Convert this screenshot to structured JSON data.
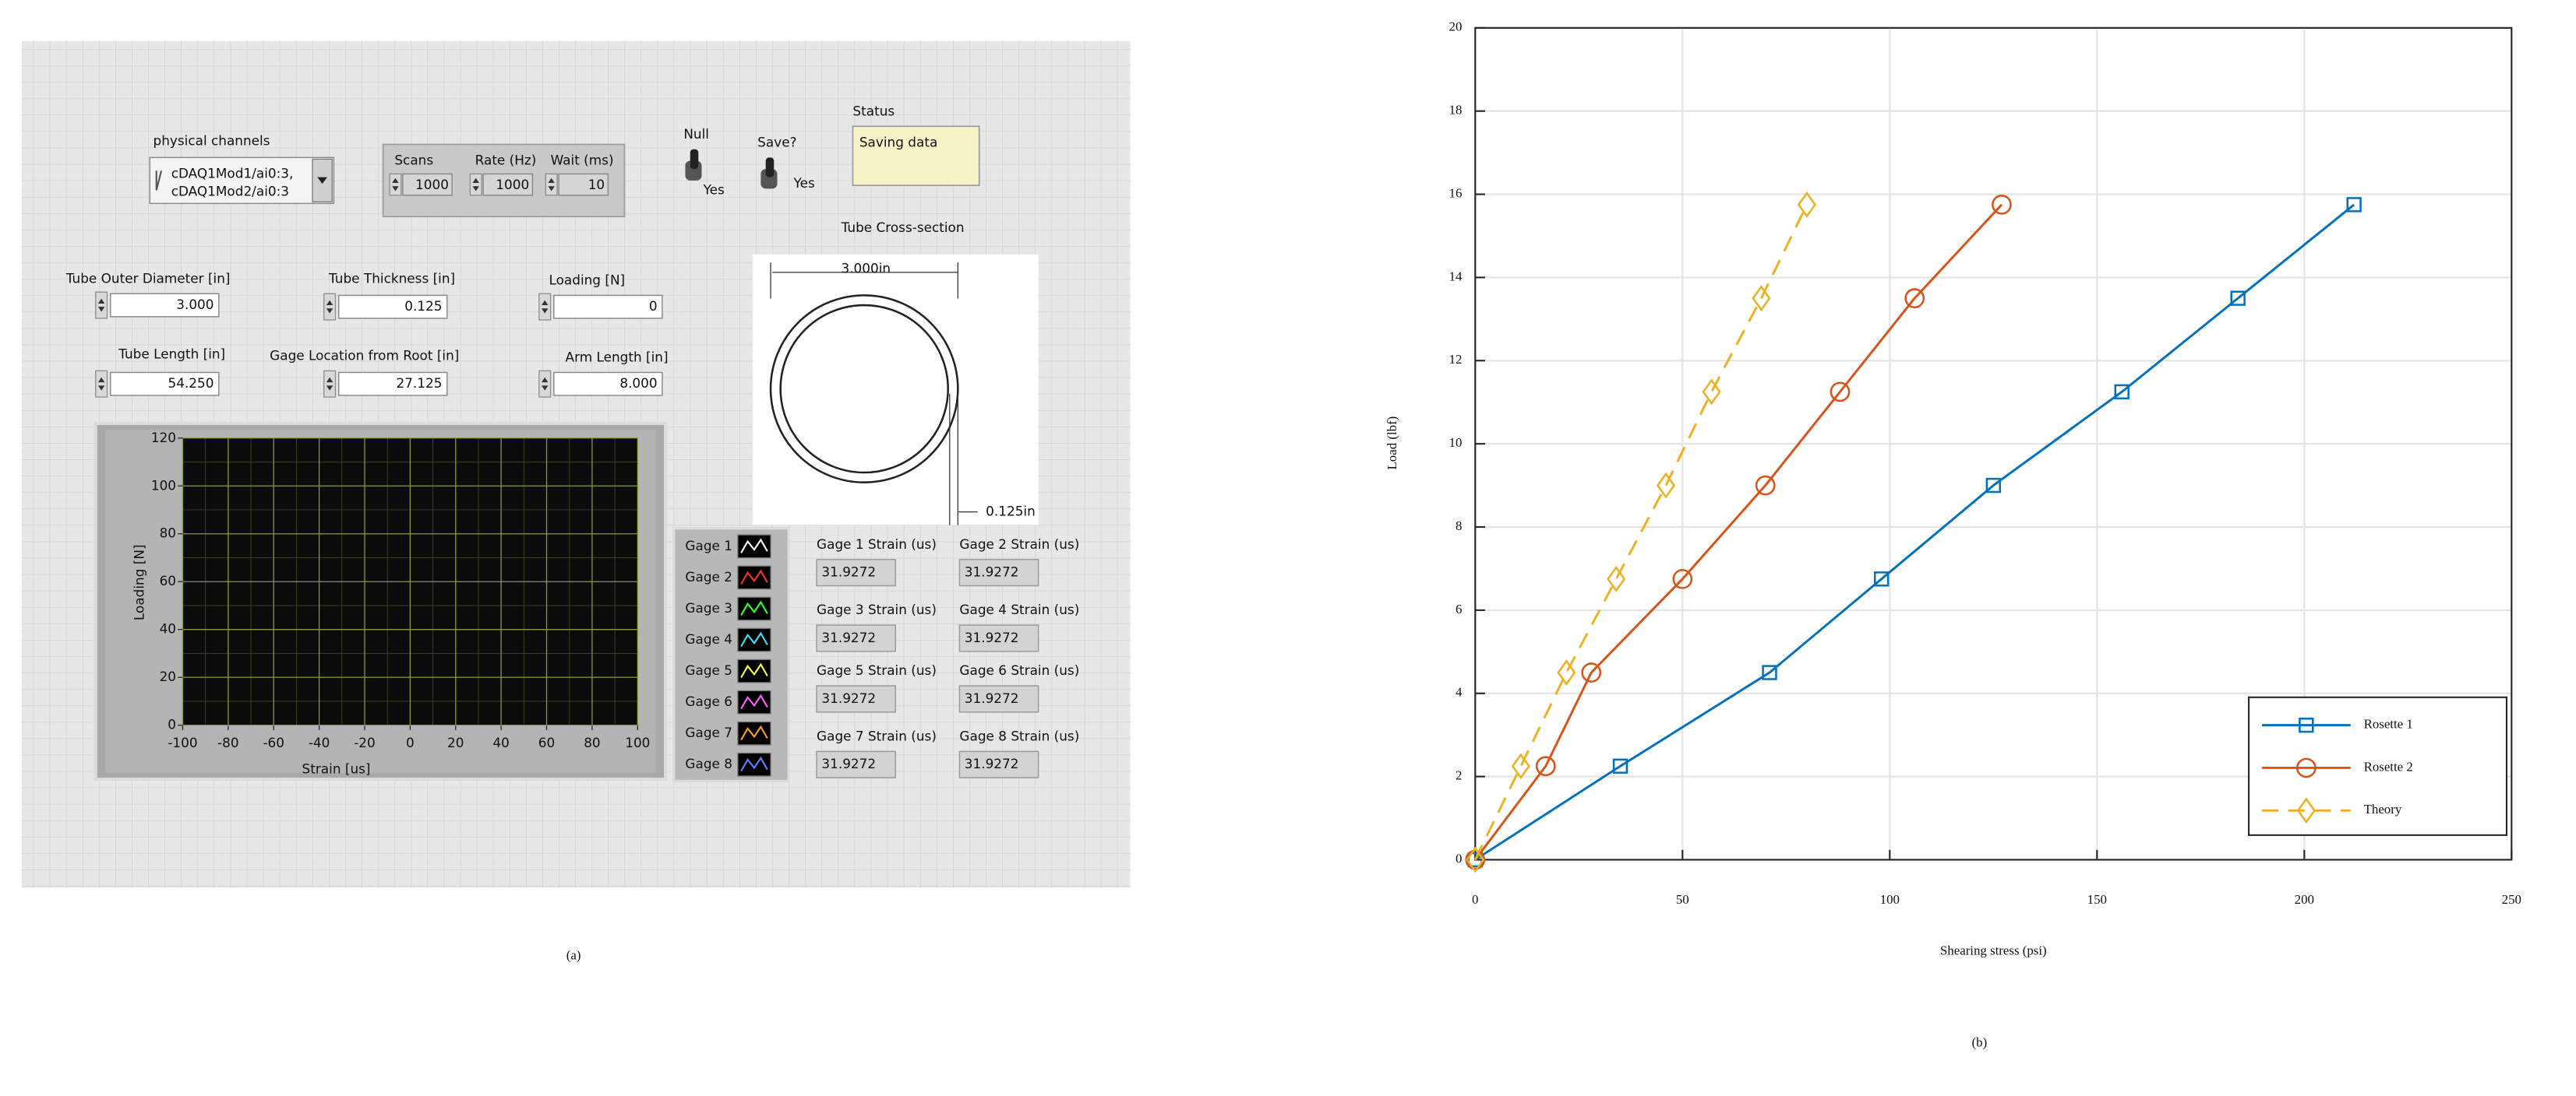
{
  "panel": {
    "physical_channels": {
      "label": "physical channels",
      "lines": [
        "cDAQ1Mod1/ai0:3,",
        "cDAQ1Mod2/ai0:3"
      ]
    },
    "acquisition": [
      {
        "label": "Scans",
        "value": "1000"
      },
      {
        "label": "Rate (Hz)",
        "value": "1000"
      },
      {
        "label": "Wait (ms)",
        "value": "10"
      }
    ],
    "switches": [
      {
        "label": "Null",
        "state": "Yes"
      },
      {
        "label": "Save?",
        "state": "Yes"
      }
    ],
    "status": {
      "label": "Status",
      "value": "Saving data"
    },
    "cross_section": {
      "label": "Tube Cross-section",
      "diameter": "3.000in",
      "thickness": "0.125in"
    },
    "inputs": [
      {
        "label": "Tube Outer Diameter [in]",
        "value": "3.000"
      },
      {
        "label": "Tube Thickness [in]",
        "value": "0.125"
      },
      {
        "label": "Loading  [N]",
        "value": "0"
      },
      {
        "label": "Tube Length [in]",
        "value": "54.250"
      },
      {
        "label": "Gage Location from Root [in]",
        "value": "27.125"
      },
      {
        "label": "Arm Length [in]",
        "value": "8.000"
      }
    ],
    "gages": [
      "Gage 1",
      "Gage 2",
      "Gage 3",
      "Gage 4",
      "Gage 5",
      "Gage 6",
      "Gage 7",
      "Gage 8"
    ],
    "strains": [
      {
        "label": "Gage 1 Strain (us)",
        "value": "31.9272"
      },
      {
        "label": "Gage 2 Strain (us)",
        "value": "31.9272"
      },
      {
        "label": "Gage 3 Strain (us)",
        "value": "31.9272"
      },
      {
        "label": "Gage 4 Strain (us)",
        "value": "31.9272"
      },
      {
        "label": "Gage 5 Strain (us)",
        "value": "31.9272"
      },
      {
        "label": "Gage 6 Strain (us)",
        "value": "31.9272"
      },
      {
        "label": "Gage 7 Strain (us)",
        "value": "31.9272"
      },
      {
        "label": "Gage 8 Strain (us)",
        "value": "31.9272"
      }
    ]
  },
  "captions": [
    "(a)",
    "(b)"
  ],
  "chart_data": [
    {
      "type": "line",
      "x_label": "Strain [us]",
      "y_label": "Loading [N]",
      "xlim": [
        -100,
        100
      ],
      "xticks": [
        -100,
        -80,
        -60,
        -40,
        -20,
        0,
        20,
        40,
        60,
        80,
        100
      ],
      "ylim": [
        0,
        120
      ],
      "yticks": [
        0,
        20,
        40,
        60,
        80,
        100,
        120
      ],
      "grid": true
    },
    {
      "type": "line",
      "x_label": "Shearing stress (psi)",
      "y_label": "Load (lbf)",
      "xlim": [
        0,
        250
      ],
      "xticks": [
        0,
        50,
        100,
        150,
        200,
        250
      ],
      "ylim": [
        0,
        20
      ],
      "yticks": [
        0,
        2,
        4,
        6,
        8,
        10,
        12,
        14,
        16,
        18,
        20
      ],
      "grid": true,
      "legend": "southeast",
      "series": [
        {
          "name": "Rosette 1",
          "color": "#0072bd",
          "marker": "square",
          "linestyle": "solid",
          "x": [
            0,
            35,
            71,
            98,
            125,
            156,
            184,
            212
          ],
          "values": [
            0,
            2.25,
            4.5,
            6.75,
            9,
            11.25,
            13.5,
            15.75
          ]
        },
        {
          "name": "Rosette 2",
          "color": "#d95319",
          "marker": "circle",
          "linestyle": "solid",
          "x": [
            0,
            17,
            28,
            50,
            70,
            88,
            106,
            127
          ],
          "values": [
            0,
            2.25,
            4.5,
            6.75,
            9,
            11.25,
            13.5,
            15.75
          ]
        },
        {
          "name": "Theory",
          "color": "#edb120",
          "marker": "diamond",
          "linestyle": "dashed",
          "x": [
            0,
            11,
            22,
            34,
            46,
            57,
            69,
            80
          ],
          "values": [
            0,
            2.25,
            4.5,
            6.75,
            9,
            11.25,
            13.5,
            15.75
          ]
        }
      ]
    }
  ]
}
